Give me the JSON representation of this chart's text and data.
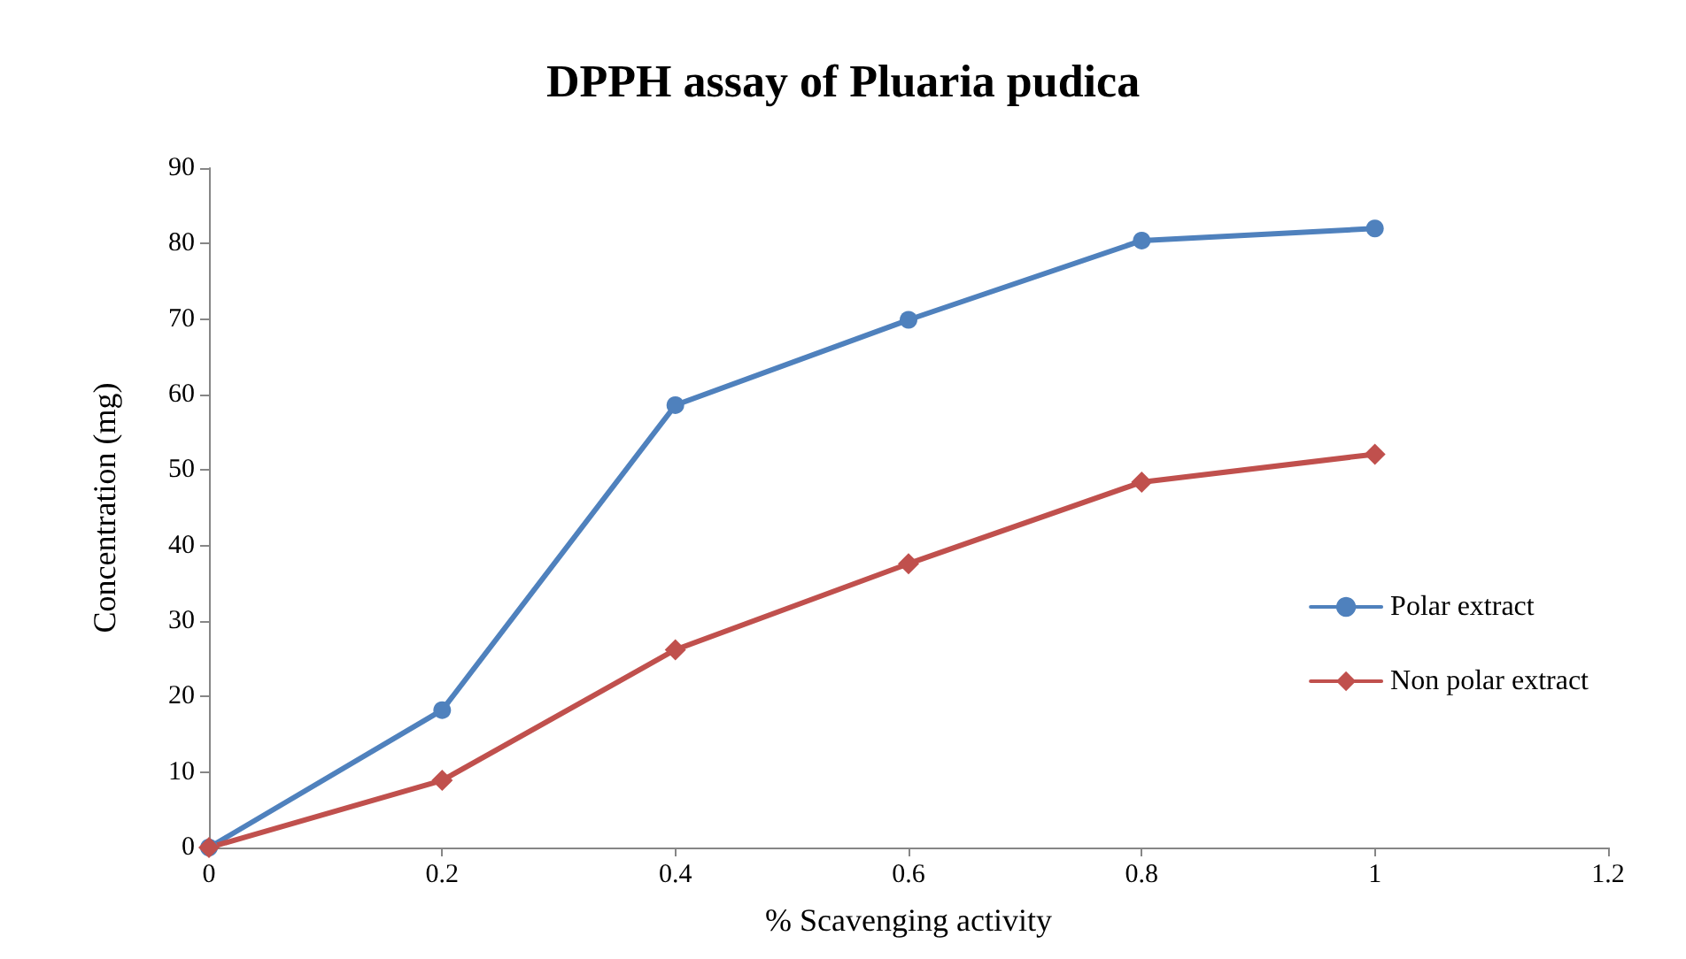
{
  "chart_data": {
    "type": "line",
    "title": "DPPH assay of Pluaria pudica",
    "xlabel": "% Scavenging activity",
    "ylabel": "Concentration (mg)",
    "x": [
      0,
      0.2,
      0.4,
      0.6,
      0.8,
      1
    ],
    "series": [
      {
        "name": "Polar extract",
        "color": "#4f81bd",
        "marker": "circle",
        "values": [
          0,
          18.2,
          58.6,
          69.9,
          80.4,
          82.0
        ]
      },
      {
        "name": "Non polar extract",
        "color": "#c0504d",
        "marker": "diamond",
        "values": [
          0,
          8.9,
          26.2,
          37.6,
          48.4,
          52.1
        ]
      }
    ],
    "xlim": [
      0,
      1.2
    ],
    "xticks": [
      0,
      0.2,
      0.4,
      0.6,
      0.8,
      1,
      1.2
    ],
    "ylim": [
      0,
      90
    ],
    "yticks": [
      0,
      10,
      20,
      30,
      40,
      50,
      60,
      70,
      80,
      90
    ],
    "grid": false,
    "legend": "right",
    "line_style": "solid"
  }
}
